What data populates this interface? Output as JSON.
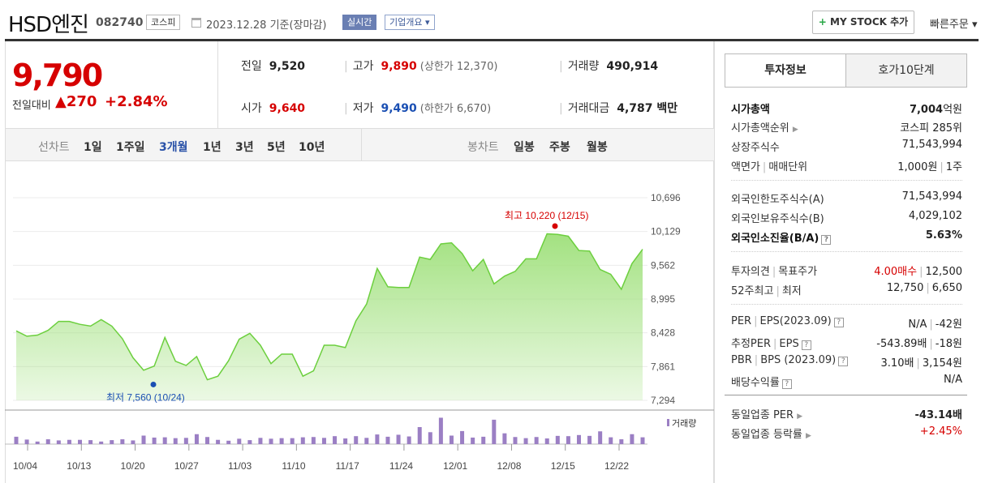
{
  "header": {
    "title": "HSD엔진",
    "code": "082740",
    "market": "코스피",
    "date": "2023.12.28 기준(장마감)",
    "realtime": "실시간",
    "overview": "기업개요",
    "mystock_plus": "+",
    "mystock": "MY STOCK 추가",
    "quick_order": "빠른주문"
  },
  "quote": {
    "price": "9,790",
    "change_label": "전일대비",
    "change": "▲270",
    "change_pct": "+2.84%",
    "prev_label": "전일",
    "prev": "9,520",
    "high_label": "고가",
    "high": "9,890",
    "upper_label": "(상한가 12,370)",
    "volume_label": "거래량",
    "volume": "490,914",
    "open_label": "시가",
    "open": "9,640",
    "low_label": "저가",
    "low": "9,490",
    "lower_label": "(하한가 6,670)",
    "amount_label": "거래대금",
    "amount": "4,787 백만"
  },
  "chart_tabs": {
    "line_label": "선차트",
    "periods": [
      "1일",
      "1주일",
      "3개월",
      "1년",
      "3년",
      "5년",
      "10년"
    ],
    "active_period": "3개월",
    "candle_label": "봉차트",
    "candles": [
      "일봉",
      "주봉",
      "월봉"
    ]
  },
  "chart_data": {
    "type": "area",
    "title": "",
    "y_ticks": [
      "10,696",
      "10,129",
      "9,562",
      "8,995",
      "8,428",
      "7,861",
      "7,294"
    ],
    "ylim": [
      7294,
      10696
    ],
    "x_tick_labels": [
      "10/04",
      "10/13",
      "10/20",
      "10/27",
      "11/03",
      "11/10",
      "11/17",
      "11/24",
      "12/01",
      "12/08",
      "12/15",
      "12/22"
    ],
    "series": [
      {
        "values": [
          8460,
          8370,
          8390,
          8470,
          8620,
          8620,
          8570,
          8540,
          8650,
          8540,
          8330,
          8010,
          7800,
          7870,
          8350,
          7950,
          7880,
          8030,
          7640,
          7700,
          7960,
          8320,
          8420,
          8220,
          7910,
          8070,
          8070,
          7700,
          7790,
          8220,
          8220,
          8180,
          8630,
          8910,
          9510,
          9200,
          9190,
          9190,
          9700,
          9660,
          9920,
          9940,
          9760,
          9470,
          9660,
          9250,
          9380,
          9460,
          9670,
          9670,
          10090,
          10080,
          10050,
          9810,
          9800,
          9490,
          9410,
          9160,
          9590,
          9830
        ]
      }
    ],
    "max_annotation": "최고 10,220 (12/15)",
    "min_annotation": "최저 7,560 (10/24)",
    "volume_legend": "거래량",
    "volume": [
      0.26,
      0.16,
      0.09,
      0.17,
      0.13,
      0.15,
      0.15,
      0.14,
      0.09,
      0.14,
      0.17,
      0.13,
      0.3,
      0.23,
      0.24,
      0.21,
      0.22,
      0.35,
      0.25,
      0.15,
      0.12,
      0.19,
      0.14,
      0.22,
      0.19,
      0.21,
      0.21,
      0.24,
      0.25,
      0.22,
      0.28,
      0.2,
      0.28,
      0.22,
      0.34,
      0.26,
      0.33,
      0.27,
      0.6,
      0.42,
      0.93,
      0.3,
      0.46,
      0.23,
      0.26,
      0.86,
      0.38,
      0.25,
      0.21,
      0.25,
      0.2,
      0.29,
      0.28,
      0.32,
      0.29,
      0.45,
      0.24,
      0.17,
      0.35,
      0.24
    ]
  },
  "invest_tabs": [
    "투자정보",
    "호가10단계"
  ],
  "invest": {
    "mcap_label": "시가총액",
    "mcap_num": "7,004",
    "mcap_unit": "억원",
    "mcap_rank_label": "시가총액순위",
    "mcap_rank": "코스피 285위",
    "shares_label": "상장주식수",
    "shares": "71,543,994",
    "par_label": "액면가",
    "trade_unit_label": "매매단위",
    "par": "1,000원",
    "trade_unit": "1주",
    "foreign_limit_label": "외국인한도주식수(A)",
    "foreign_limit": "71,543,994",
    "foreign_hold_label": "외국인보유주식수(B)",
    "foreign_hold": "4,029,102",
    "foreign_rate_label": "외국인소진율(B/A)",
    "foreign_rate": "5.63%",
    "opinion_label": "투자의견",
    "target_label": "목표주가",
    "opinion": "4.00매수",
    "target": "12,500",
    "w52_label": "52주최고",
    "w52_low_label": "최저",
    "w52_high": "12,750",
    "w52_low": "6,650",
    "per_label": "PER",
    "eps_label": "EPS(2023.09)",
    "per": "N/A",
    "eps": "-42원",
    "eper_label": "추정PER",
    "eeps_label": "EPS",
    "eper": "-543.89배",
    "eeps": "-18원",
    "pbr_label": "PBR",
    "bps_label": "BPS (2023.09)",
    "pbr": "3.10배",
    "bps": "3,154원",
    "div_label": "배당수익률",
    "div": "N/A",
    "sector_per_label": "동일업종 PER",
    "sector_per": "-43.14배",
    "sector_rate_label": "동일업종 등락률",
    "sector_rate": "+2.45%",
    "help": "?"
  },
  "colors": {
    "up": "#d60000",
    "down": "#1a4fb3",
    "area": "#9ee07a",
    "volume": "#9b7fc4"
  }
}
